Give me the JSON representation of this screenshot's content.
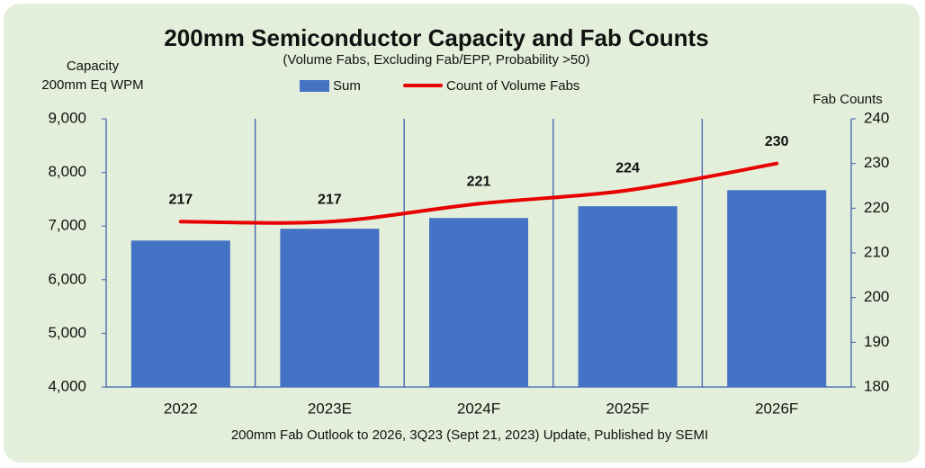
{
  "chart_data": {
    "type": "bar",
    "title": "200mm Semiconductor Capacity and Fab Counts",
    "subtitle": "(Volume Fabs, Excluding Fab/EPP, Probability >50)",
    "ylabel": [
      "Capacity",
      "200mm Eq WPM"
    ],
    "y2label": "Fab Counts",
    "note": "200mm Fab Outlook to 2026, 3Q23 (Sept 21, 2023) Update, Published by SEMI",
    "categories": [
      "2022",
      "2023E",
      "2024F",
      "2025F",
      "2026F"
    ],
    "series": [
      {
        "name": "Sum",
        "type": "bar",
        "color": "#4472c4",
        "values": [
          6730,
          6950,
          7150,
          7370,
          7670
        ]
      },
      {
        "name": "Count of Volume Fabs",
        "type": "line",
        "axis": "y2",
        "color": "#e80000",
        "values": [
          217,
          217,
          221,
          224,
          230
        ],
        "smooth": true
      }
    ],
    "ylim": [
      4000,
      9000
    ],
    "yticks": [
      {
        "value": 4000,
        "label": "4,000"
      },
      {
        "value": 5000,
        "label": "5,000"
      },
      {
        "value": 6000,
        "label": "6,000"
      },
      {
        "value": 7000,
        "label": "7,000"
      },
      {
        "value": 8000,
        "label": "8,000"
      },
      {
        "value": 9000,
        "label": "9,000"
      }
    ],
    "y2lim": [
      180,
      240
    ],
    "y2ticks": [
      180,
      190,
      200,
      210,
      220,
      230,
      240
    ],
    "legend": "top"
  }
}
